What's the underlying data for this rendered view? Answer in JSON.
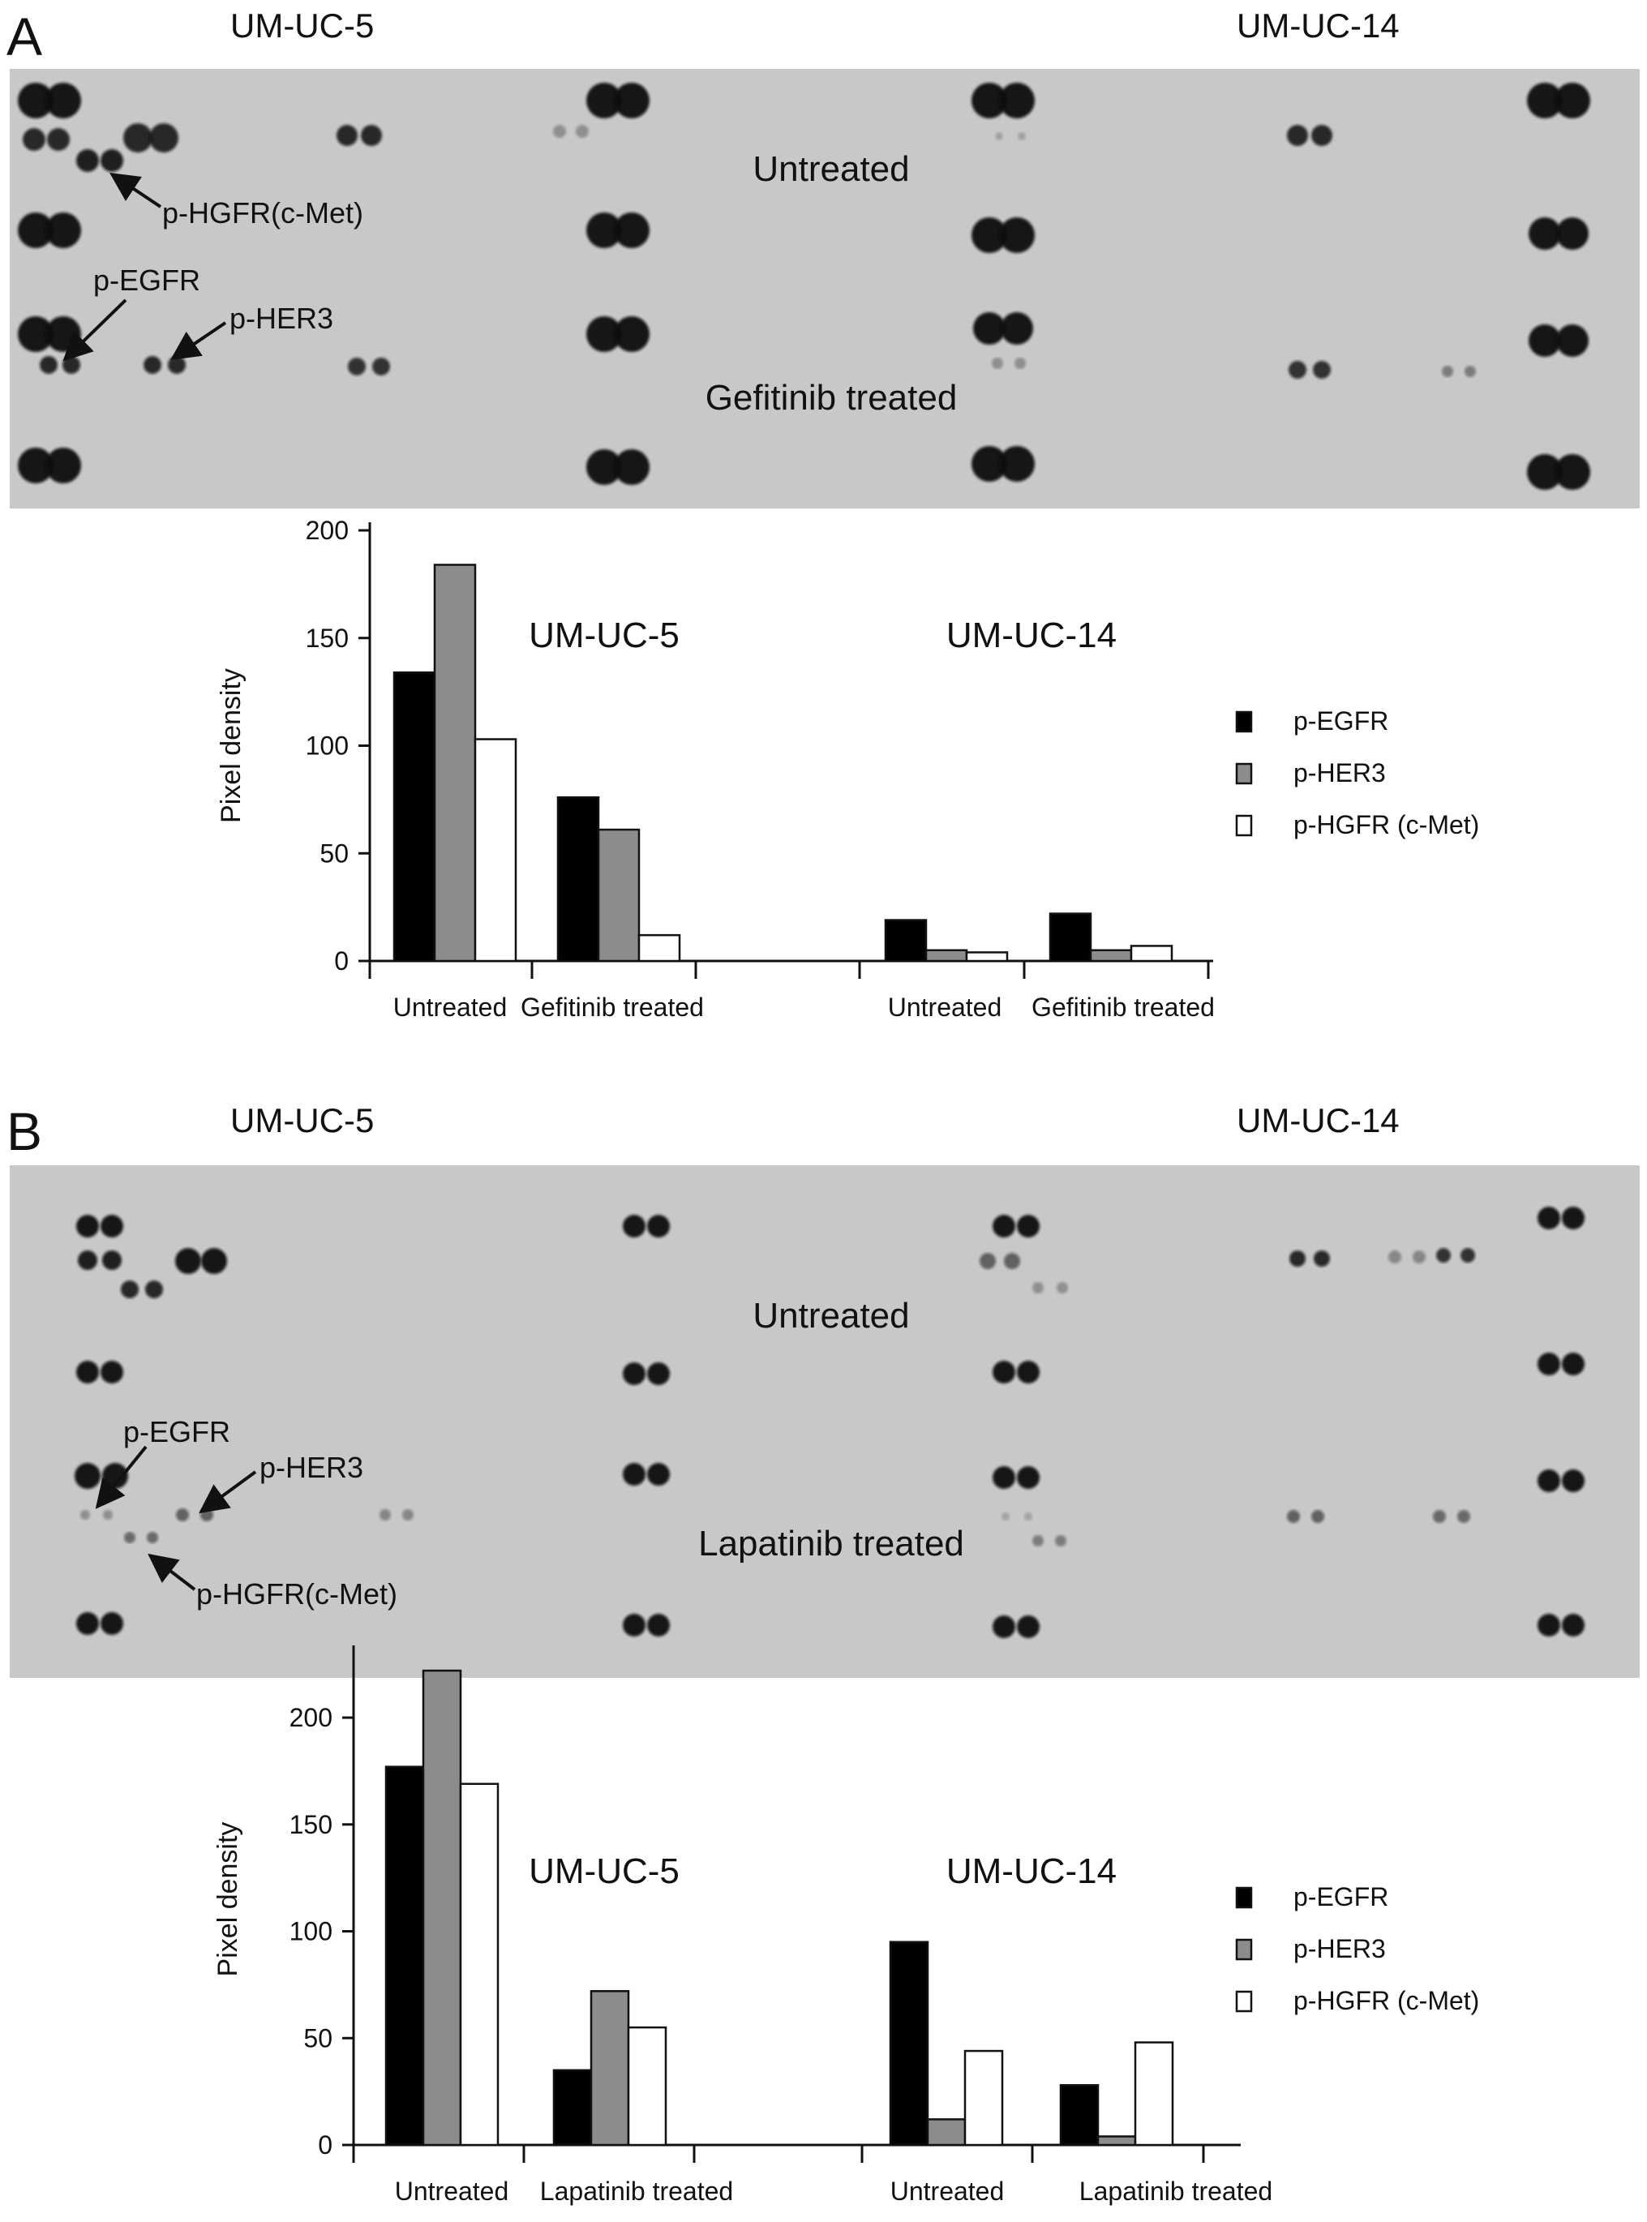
{
  "colors": {
    "blot_background": "#c8c8c8",
    "spot": "#111111",
    "p_egfr": "#000000",
    "p_her3": "#8c8c8c",
    "p_hgfr": "#ffffff"
  },
  "panel_a": {
    "letter": "A",
    "cell_line_left": "UM-UC-5",
    "cell_line_right": "UM-UC-14",
    "blot": {
      "label_top": "Untreated",
      "label_bottom": "Gefitinib treated",
      "arrows": {
        "hgfr": "p-HGFR(c-Met)",
        "egfr": "p-EGFR",
        "her3": "p-HER3"
      }
    }
  },
  "panel_b": {
    "letter": "B",
    "cell_line_left": "UM-UC-5",
    "cell_line_right": "UM-UC-14",
    "blot": {
      "label_top": "Untreated",
      "label_bottom": "Lapatinib treated",
      "arrows": {
        "egfr": "p-EGFR",
        "her3": "p-HER3",
        "hgfr": "p-HGFR(c-Met)"
      }
    }
  },
  "chart_data": [
    {
      "type": "bar",
      "panel": "A",
      "ylabel": "Pixel density",
      "ylim": [
        0,
        200
      ],
      "yticks": [
        0,
        50,
        100,
        150,
        200
      ],
      "groups": [
        "UM-UC-5",
        "UM-UC-14"
      ],
      "categories": [
        "Untreated",
        "Gefitinib treated",
        "Untreated",
        "Gefitinib treated"
      ],
      "series": [
        {
          "name": "p-EGFR",
          "values": [
            134,
            76,
            19,
            22
          ]
        },
        {
          "name": "p-HER3",
          "values": [
            184,
            61,
            5,
            5
          ]
        },
        {
          "name": "p-HGFR (c-Met)",
          "values": [
            103,
            12,
            4,
            7
          ]
        }
      ],
      "legend": "right"
    },
    {
      "type": "bar",
      "panel": "B",
      "ylabel": "Pixel density",
      "ylim": [
        0,
        230
      ],
      "yticks": [
        0,
        50,
        100,
        150,
        200
      ],
      "groups": [
        "UM-UC-5",
        "UM-UC-14"
      ],
      "categories": [
        "Untreated",
        "Lapatinib treated",
        "Untreated",
        "Lapatinib treated"
      ],
      "series": [
        {
          "name": "p-EGFR",
          "values": [
            177,
            35,
            95,
            28
          ]
        },
        {
          "name": "p-HER3",
          "values": [
            222,
            72,
            12,
            4
          ]
        },
        {
          "name": "p-HGFR (c-Met)",
          "values": [
            169,
            55,
            44,
            48
          ]
        }
      ],
      "legend": "right"
    }
  ]
}
